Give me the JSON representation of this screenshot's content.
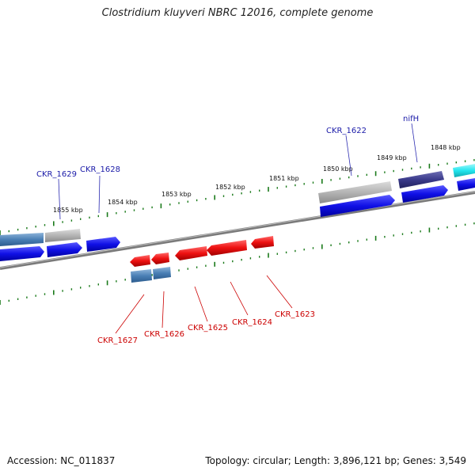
{
  "header": {
    "title": "Clostridium kluyveri NBRC 12016, complete genome"
  },
  "footer": {
    "accession": "Accession: NC_011837",
    "stats": "Topology: circular; Length: 3,896,121 bp; Genes: 3,549"
  },
  "ruler": {
    "labels": [
      "1855 kbp",
      "1854 kbp",
      "1853 kbp",
      "1852 kbp",
      "1851 kbp",
      "1850 kbp",
      "1849 kbp",
      "1848 kbp"
    ]
  },
  "genes": {
    "forward": [
      "CKR_1629",
      "CKR_1628",
      "CKR_1622",
      "nifH"
    ],
    "reverse": [
      "CKR_1627",
      "CKR_1626",
      "CKR_1625",
      "CKR_1624",
      "CKR_1623"
    ]
  },
  "colors": {
    "forward_cds": "#1010e6",
    "reverse_cds": "#ee1111",
    "gray_gene": "#a9a9a9",
    "steelblue_gene": "#4a7fb5",
    "navy_gene": "#3a3a8a",
    "cyan_gene": "#22e6ee",
    "backbone": "#808080",
    "tick": "#1a7a1a",
    "forward_label": "#1a1aa8",
    "reverse_label": "#cc0000"
  }
}
